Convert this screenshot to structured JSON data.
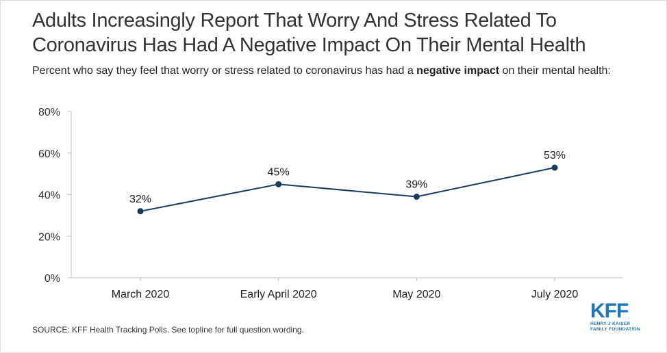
{
  "header": {
    "title_line1": "Adults Increasingly Report That Worry And Stress Related To",
    "title_line2": "Coronavirus Has Had A Negative Impact On Their Mental Health",
    "subtitle_pre": "Percent who say they feel that worry or stress related to coronavirus has had a ",
    "subtitle_bold": "negative impact",
    "subtitle_post": " on their mental health:"
  },
  "chart_data": {
    "type": "line",
    "categories": [
      "March 2020",
      "Early April 2020",
      "May 2020",
      "July 2020"
    ],
    "series": [
      {
        "values": [
          32,
          45,
          39,
          53
        ]
      }
    ],
    "data_labels": [
      "32%",
      "45%",
      "39%",
      "53%"
    ],
    "y_ticks": [
      0,
      20,
      40,
      60,
      80
    ],
    "y_tick_labels": [
      "0%",
      "20%",
      "40%",
      "60%",
      "80%"
    ],
    "ylim": [
      0,
      80
    ],
    "grid": false,
    "colors": {
      "line": "#1b3a5c",
      "axis": "#bfbfbf"
    }
  },
  "footer": {
    "source": "SOURCE: KFF Health Tracking Polls. See topline for full question wording."
  },
  "logo": {
    "mark": "KFF",
    "line1": "HENRY J KAISER",
    "line2": "FAMILY FOUNDATION"
  }
}
